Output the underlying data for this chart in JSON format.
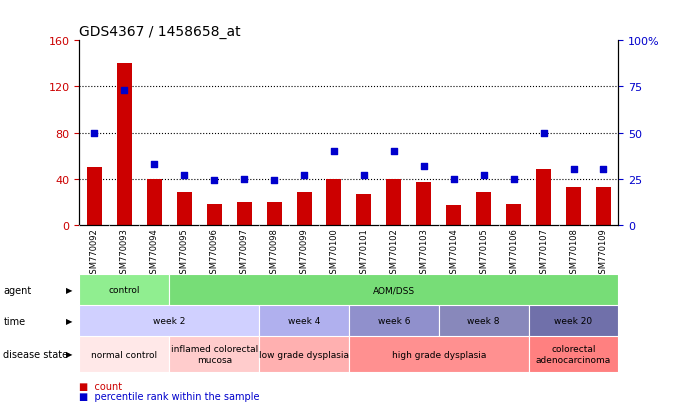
{
  "title": "GDS4367 / 1458658_at",
  "samples": [
    "GSM770092",
    "GSM770093",
    "GSM770094",
    "GSM770095",
    "GSM770096",
    "GSM770097",
    "GSM770098",
    "GSM770099",
    "GSM770100",
    "GSM770101",
    "GSM770102",
    "GSM770103",
    "GSM770104",
    "GSM770105",
    "GSM770106",
    "GSM770107",
    "GSM770108",
    "GSM770109"
  ],
  "counts": [
    50,
    140,
    40,
    28,
    18,
    20,
    20,
    28,
    40,
    27,
    40,
    37,
    17,
    28,
    18,
    48,
    33,
    33
  ],
  "percentiles": [
    50,
    73,
    33,
    27,
    24,
    25,
    24,
    27,
    40,
    27,
    40,
    32,
    25,
    27,
    25,
    50,
    30,
    30
  ],
  "bar_color": "#cc0000",
  "scatter_color": "#0000cc",
  "left_ylim": [
    0,
    160
  ],
  "left_yticks": [
    0,
    40,
    80,
    120,
    160
  ],
  "right_ylim": [
    0,
    100
  ],
  "right_yticks": [
    0,
    25,
    50,
    75,
    100
  ],
  "right_yticklabels": [
    "0",
    "25",
    "50",
    "75",
    "100%"
  ],
  "grid_values": [
    40,
    80,
    120
  ],
  "agent_segments": [
    {
      "text": "control",
      "start": 0,
      "end": 3,
      "color": "#90ee90"
    },
    {
      "text": "AOM/DSS",
      "start": 3,
      "end": 18,
      "color": "#77dd77"
    }
  ],
  "time_segments": [
    {
      "text": "week 2",
      "start": 0,
      "end": 6,
      "color": "#d0d0ff"
    },
    {
      "text": "week 4",
      "start": 6,
      "end": 9,
      "color": "#b0b0ee"
    },
    {
      "text": "week 6",
      "start": 9,
      "end": 12,
      "color": "#9090cc"
    },
    {
      "text": "week 8",
      "start": 12,
      "end": 15,
      "color": "#8888bb"
    },
    {
      "text": "week 20",
      "start": 15,
      "end": 18,
      "color": "#7070aa"
    }
  ],
  "disease_segments": [
    {
      "text": "normal control",
      "start": 0,
      "end": 3,
      "color": "#ffe8e8"
    },
    {
      "text": "inflamed colorectal\nmucosa",
      "start": 3,
      "end": 6,
      "color": "#ffcccc"
    },
    {
      "text": "low grade dysplasia",
      "start": 6,
      "end": 9,
      "color": "#ffb0b0"
    },
    {
      "text": "high grade dysplasia",
      "start": 9,
      "end": 15,
      "color": "#ff9090"
    },
    {
      "text": "colorectal\nadenocarcinoma",
      "start": 15,
      "end": 18,
      "color": "#ff8080"
    }
  ],
  "legend_count_color": "#cc0000",
  "legend_pct_color": "#0000cc",
  "background_color": "#ffffff",
  "xtick_bg_color": "#c8c8c8"
}
